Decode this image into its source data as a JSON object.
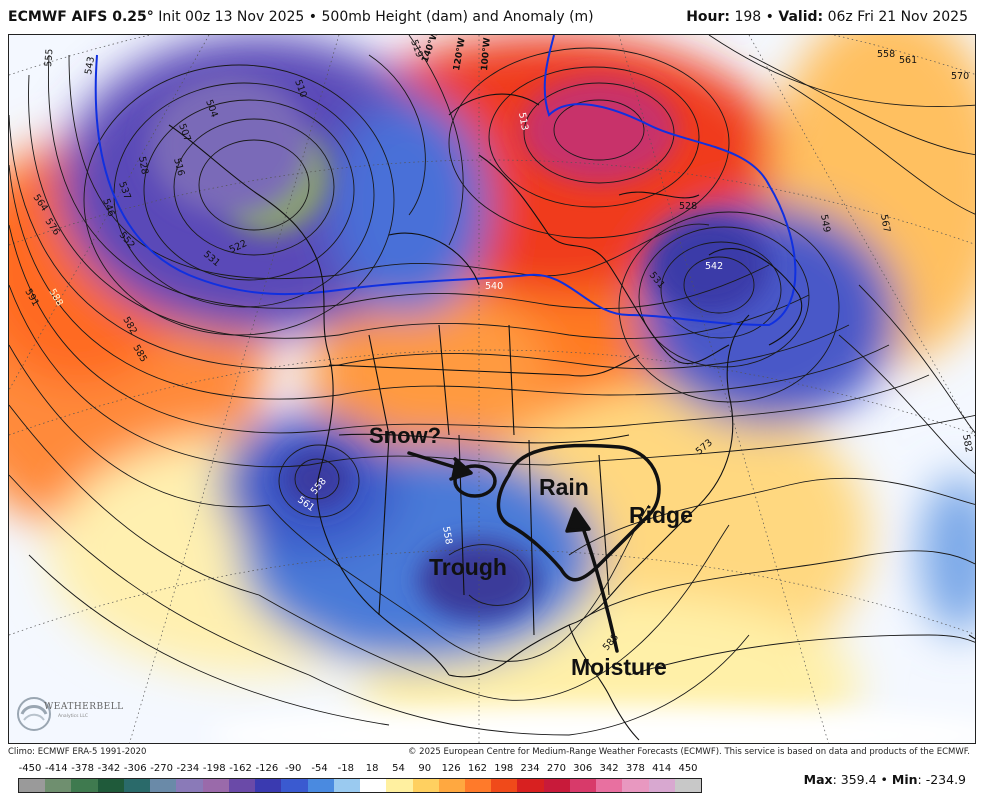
{
  "header": {
    "model": "ECMWF AIFS 0.25",
    "degree": "°",
    "init_text": "Init 00z 13 Nov 2025",
    "separator": "•",
    "product": "500mb Height (dam) and Anomaly (m)",
    "hour_label": "Hour:",
    "hour_value": "198",
    "valid_label": "Valid:",
    "valid_value": "06z Fri 21 Nov 2025"
  },
  "annotations": {
    "snow": "Snow?",
    "rain": "Rain",
    "ridge": "Ridge",
    "trough": "Trough",
    "moisture": "Moisture"
  },
  "contour_labels": {
    "c555": "555",
    "c543": "543",
    "c546": "546",
    "c507": "507",
    "c504": "504",
    "c516": "516",
    "c528": "528",
    "c537": "537",
    "c552": "552",
    "c564": "564",
    "c576": "576",
    "c531": "531",
    "c522": "522",
    "c591": "591",
    "c588": "588",
    "c582": "582",
    "c585": "585",
    "c510": "510",
    "c519": "519",
    "c513": "513",
    "c558": "558",
    "c561": "561",
    "c570": "570",
    "c549": "549",
    "c567": "567",
    "c542": "542",
    "c540": "540",
    "c573": "573"
  },
  "meridian_labels": {
    "w140": "140°W",
    "w120": "120°W",
    "w100": "100°W"
  },
  "logo": {
    "name": "WEATHERBELL",
    "sub": "Analytics LLC"
  },
  "credits": {
    "climo": "Climo: ECMWF ERA-5 1991-2020",
    "copyright": "© 2025 European Centre for Medium-Range Weather Forecasts (ECMWF). This service is based on data and products of the ECMWF."
  },
  "legend": {
    "labels": [
      "-450",
      "-414",
      "-378",
      "-342",
      "-306",
      "-270",
      "-234",
      "-198",
      "-162",
      "-126",
      "-90",
      "-54",
      "-18",
      "18",
      "54",
      "90",
      "126",
      "162",
      "198",
      "234",
      "270",
      "306",
      "342",
      "378",
      "414",
      "450"
    ],
    "colors": [
      "#9a9a9a",
      "#6f8f6f",
      "#3f7a4f",
      "#1f5a3a",
      "#2a6a6a",
      "#6a8aa8",
      "#8a7ab8",
      "#9a6aaa",
      "#6a4aa8",
      "#3a3ab0",
      "#3a5ad0",
      "#4a8ae0",
      "#9acaf0",
      "#ffffff",
      "#fff0a0",
      "#ffd060",
      "#ffa840",
      "#ff7a2a",
      "#f04a1a",
      "#d82020",
      "#c81a3a",
      "#d83a6a",
      "#e870a0",
      "#e898c0",
      "#d8a8d0",
      "#c8c8c8"
    ]
  },
  "stats": {
    "max_label": "Max",
    "max_value": ": 359.4",
    "bullet": "•",
    "min_label": "Min",
    "min_value": ": -234.9"
  },
  "colors": {
    "contour": "#1a1a1a",
    "zero_contour": "#1030e0",
    "boundary": "#111111",
    "annotation": "#111111"
  }
}
